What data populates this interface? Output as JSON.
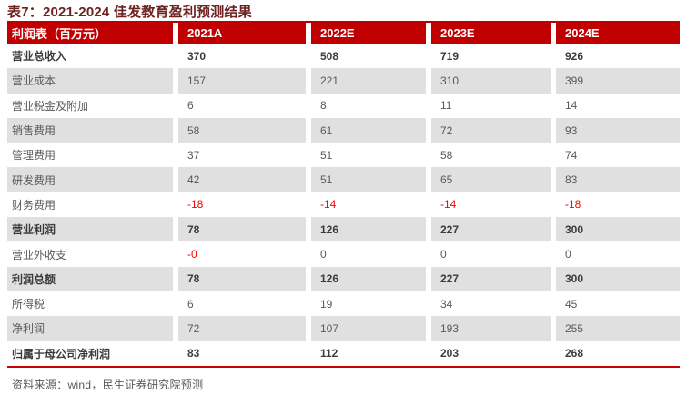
{
  "title": "表7：2021-2024 佳发教育盈利预测结果",
  "source_note": "资料来源：wind，民生证券研究院预测",
  "colors": {
    "header_bg": "#c00000",
    "header_text": "#ffffff",
    "zebra_row": "#e0e0e0",
    "negative_value": "#ff0000",
    "title_text": "#6e2222",
    "body_text": "#595959",
    "bold_text": "#3b3b3b",
    "bottom_rule": "#cc0000"
  },
  "table": {
    "columns": [
      "利润表（百万元）",
      "2021A",
      "2022E",
      "2023E",
      "2024E"
    ],
    "rows": [
      {
        "label": "营业总收入",
        "values": [
          "370",
          "508",
          "719",
          "926"
        ],
        "bold": true,
        "red_indices": []
      },
      {
        "label": "营业成本",
        "values": [
          "157",
          "221",
          "310",
          "399"
        ],
        "bold": false,
        "red_indices": []
      },
      {
        "label": "营业税金及附加",
        "values": [
          "6",
          "8",
          "11",
          "14"
        ],
        "bold": false,
        "red_indices": []
      },
      {
        "label": "销售费用",
        "values": [
          "58",
          "61",
          "72",
          "93"
        ],
        "bold": false,
        "red_indices": []
      },
      {
        "label": "管理费用",
        "values": [
          "37",
          "51",
          "58",
          "74"
        ],
        "bold": false,
        "red_indices": []
      },
      {
        "label": "研发费用",
        "values": [
          "42",
          "51",
          "65",
          "83"
        ],
        "bold": false,
        "red_indices": []
      },
      {
        "label": "财务费用",
        "values": [
          "-18",
          "-14",
          "-14",
          "-18"
        ],
        "bold": false,
        "red_indices": [
          0,
          1,
          2,
          3
        ]
      },
      {
        "label": "营业利润",
        "values": [
          "78",
          "126",
          "227",
          "300"
        ],
        "bold": true,
        "red_indices": []
      },
      {
        "label": "营业外收支",
        "values": [
          "-0",
          "0",
          "0",
          "0"
        ],
        "bold": false,
        "red_indices": [
          0
        ]
      },
      {
        "label": "利润总额",
        "values": [
          "78",
          "126",
          "227",
          "300"
        ],
        "bold": true,
        "red_indices": []
      },
      {
        "label": "所得税",
        "values": [
          "6",
          "19",
          "34",
          "45"
        ],
        "bold": false,
        "red_indices": []
      },
      {
        "label": "净利润",
        "values": [
          "72",
          "107",
          "193",
          "255"
        ],
        "bold": false,
        "red_indices": []
      },
      {
        "label": "归属于母公司净利润",
        "values": [
          "83",
          "112",
          "203",
          "268"
        ],
        "bold": true,
        "red_indices": []
      }
    ]
  }
}
